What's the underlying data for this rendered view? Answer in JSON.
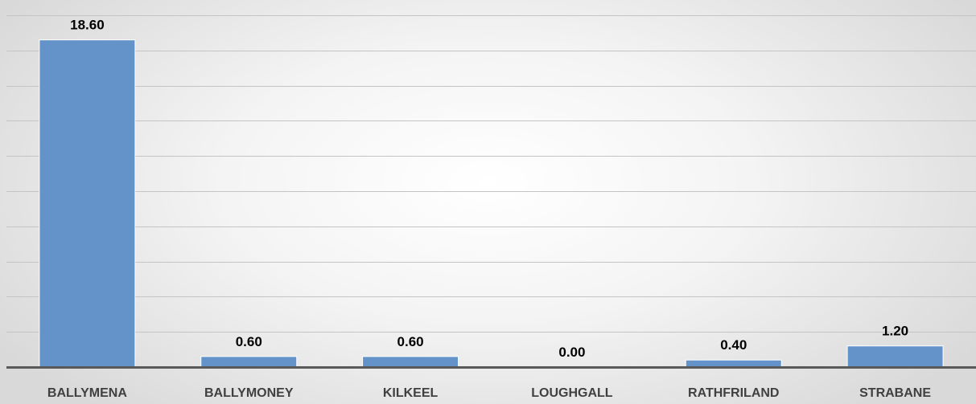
{
  "chart_data": {
    "type": "bar",
    "categories": [
      "BALLYMENA",
      "BALLYMONEY",
      "KILKEEL",
      "LOUGHGALL",
      "RATHFRILAND",
      "STRABANE"
    ],
    "values": [
      18.6,
      0.6,
      0.6,
      0.0,
      0.4,
      1.2
    ],
    "value_labels": [
      "18.60",
      "0.60",
      "0.60",
      "0.00",
      "0.40",
      "1.20"
    ],
    "title": "",
    "xlabel": "",
    "ylabel": "",
    "ylim": [
      0,
      20
    ],
    "grid": true,
    "legend": "none",
    "colors": {
      "bar": "#6393c9",
      "bar_outline": "#ffffff",
      "gridline": "#c4c4c4",
      "axis": "#595959",
      "tick_label": "#404040",
      "data_label": "#000000"
    }
  }
}
